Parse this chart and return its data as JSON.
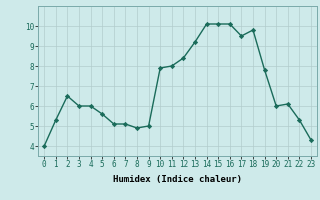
{
  "x": [
    0,
    1,
    2,
    3,
    4,
    5,
    6,
    7,
    8,
    9,
    10,
    11,
    12,
    13,
    14,
    15,
    16,
    17,
    18,
    19,
    20,
    21,
    22,
    23
  ],
  "y": [
    4.0,
    5.3,
    6.5,
    6.0,
    6.0,
    5.6,
    5.1,
    5.1,
    4.9,
    5.0,
    7.9,
    8.0,
    8.4,
    9.2,
    10.1,
    10.1,
    10.1,
    9.5,
    9.8,
    7.8,
    6.0,
    6.1,
    5.3,
    4.3
  ],
  "xlabel": "Humidex (Indice chaleur)",
  "ylim": [
    3.5,
    11.0
  ],
  "xlim": [
    -0.5,
    23.5
  ],
  "yticks": [
    4,
    5,
    6,
    7,
    8,
    9,
    10
  ],
  "xticks": [
    0,
    1,
    2,
    3,
    4,
    5,
    6,
    7,
    8,
    9,
    10,
    11,
    12,
    13,
    14,
    15,
    16,
    17,
    18,
    19,
    20,
    21,
    22,
    23
  ],
  "line_color": "#1a6b5a",
  "marker": "D",
  "marker_size": 2.2,
  "bg_color": "#ceeaea",
  "grid_color": "#b2cccc",
  "line_width": 1.0,
  "tick_fontsize": 5.5,
  "xlabel_fontsize": 6.5
}
